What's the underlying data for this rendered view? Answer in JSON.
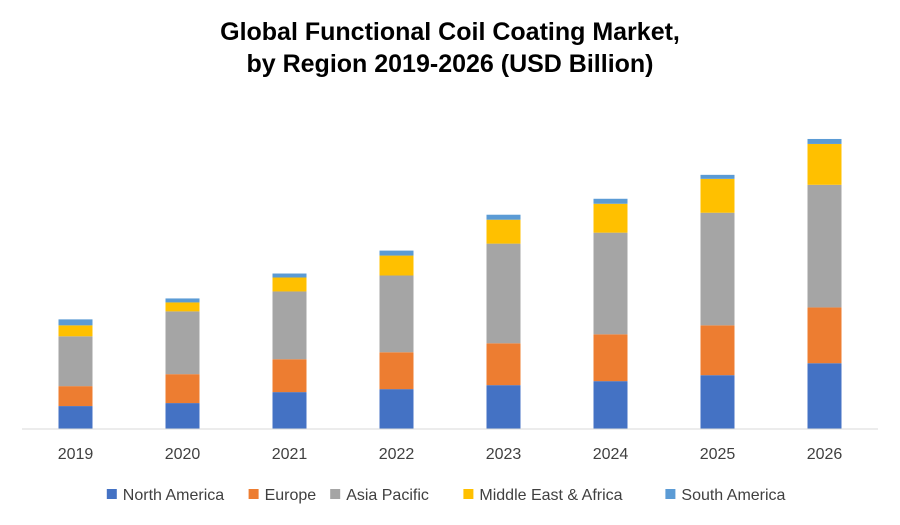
{
  "chart_data": {
    "type": "bar",
    "stacked": true,
    "title_lines": [
      "Global Functional Coil Coating Market,",
      "by Region 2019-2026 (USD Billion)"
    ],
    "xlabel": "",
    "ylabel": "",
    "categories": [
      "2019",
      "2020",
      "2021",
      "2022",
      "2023",
      "2024",
      "2025",
      "2026"
    ],
    "series": [
      {
        "name": "North America",
        "color": "#4472C4",
        "values": [
          2.3,
          2.6,
          3.7,
          4.0,
          4.4,
          4.8,
          5.4,
          6.6
        ]
      },
      {
        "name": "Europe",
        "color": "#ED7D31",
        "values": [
          2.0,
          2.9,
          3.3,
          3.7,
          4.2,
          4.7,
          5.0,
          5.6
        ]
      },
      {
        "name": "Asia Pacific",
        "color": "#A5A5A5",
        "values": [
          5.0,
          6.3,
          6.8,
          7.7,
          10.0,
          10.2,
          11.3,
          12.3
        ]
      },
      {
        "name": "Middle East & Africa",
        "color": "#FFC000",
        "values": [
          1.1,
          0.9,
          1.4,
          2.0,
          2.4,
          2.9,
          3.4,
          4.1
        ]
      },
      {
        "name": "South America",
        "color": "#5B9BD5",
        "values": [
          0.6,
          0.4,
          0.4,
          0.5,
          0.5,
          0.5,
          0.4,
          0.5
        ]
      }
    ],
    "ylim": [
      0,
      30
    ],
    "grid": false,
    "legend_position": "bottom"
  }
}
